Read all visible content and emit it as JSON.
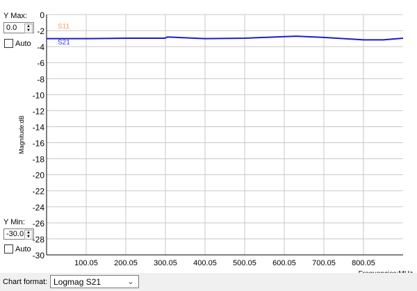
{
  "controls": {
    "ymax_label": "Y Max:",
    "ymax_value": "0.0",
    "ymax_auto": "Auto",
    "ymin_label": "Y Min:",
    "ymin_value": "-30.0",
    "ymin_auto": "Auto",
    "chart_format_label": "Chart format:",
    "chart_format_value": "Logmag S21"
  },
  "chart_data": {
    "type": "line",
    "xlabel": "Frequencies:MHz",
    "ylabel": "Magnitude:dB",
    "xlim": [
      0.05,
      900.05
    ],
    "ylim": [
      -30,
      0
    ],
    "xticks": [
      100.05,
      200.05,
      300.05,
      400.05,
      500.05,
      600.05,
      700.05,
      800.05
    ],
    "yticks": [
      0,
      -2,
      -4,
      -6,
      -8,
      -10,
      -12,
      -14,
      -16,
      -18,
      -20,
      -22,
      -24,
      -26,
      -28,
      -30
    ],
    "grid": true,
    "legend": [
      {
        "name": "S11",
        "color": "#f5a05a"
      },
      {
        "name": "S21",
        "color": "#3a3ad8"
      }
    ],
    "series": [
      {
        "name": "S21",
        "color": "#1a1ad0",
        "x": [
          0.05,
          100,
          200,
          299,
          305,
          400,
          500,
          600,
          630,
          700,
          800,
          850,
          900.05
        ],
        "y": [
          -3.0,
          -3.0,
          -2.95,
          -2.95,
          -2.8,
          -3.0,
          -2.95,
          -2.75,
          -2.7,
          -2.85,
          -3.15,
          -3.15,
          -2.95
        ]
      }
    ]
  }
}
